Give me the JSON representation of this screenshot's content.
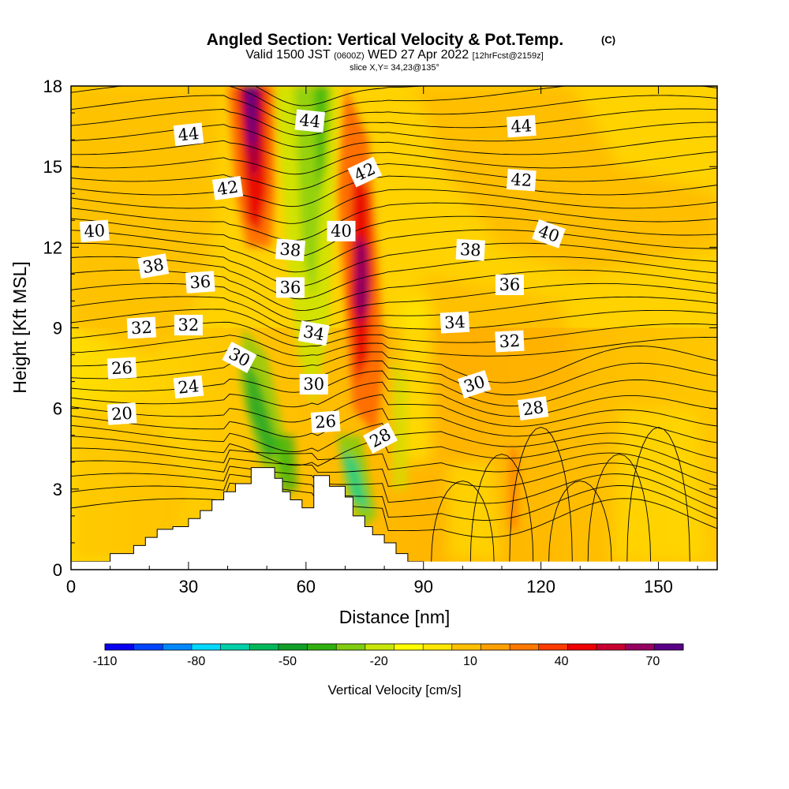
{
  "title": {
    "main": "Angled Section: Vertical Velocity & Pot.Temp.",
    "copyright": "(C)",
    "valid_prefix": "Valid 1500 JST",
    "valid_utc": "(0600Z)",
    "valid_date": "WED 27 Apr 2022",
    "forecast": "[12hrFcst@2159z]",
    "slice": "slice X,Y= 34,23@135°"
  },
  "chart_data": {
    "type": "heatmap",
    "xlabel": "Distance [nm]",
    "ylabel": "Height [Kft MSL]",
    "xlim": [
      0,
      165
    ],
    "ylim": [
      0,
      18
    ],
    "xticks": [
      0,
      30,
      60,
      90,
      120,
      150
    ],
    "yticks": [
      0,
      3,
      6,
      9,
      12,
      15,
      18
    ],
    "colorbar": {
      "title": "Vertical Velocity [cm/s]",
      "tick_labels": [
        "-110",
        "-80",
        "-50",
        "-20",
        "10",
        "40",
        "70"
      ],
      "tick_values": [
        -110,
        -80,
        -50,
        -20,
        10,
        40,
        70
      ],
      "bins": [
        -110,
        -100,
        -90,
        -80,
        -70,
        -60,
        -50,
        -40,
        -30,
        -20,
        -10,
        0,
        10,
        20,
        30,
        40,
        50,
        60,
        70,
        80
      ],
      "colors": [
        "#0a00f0",
        "#0044ff",
        "#0088ff",
        "#00d8ff",
        "#00d0a8",
        "#00b85a",
        "#10a028",
        "#30b010",
        "#80cc10",
        "#c8e608",
        "#ffff00",
        "#ffe600",
        "#ffc000",
        "#ffa000",
        "#ff7800",
        "#ff3c00",
        "#f00000",
        "#c80030",
        "#960060",
        "#5a0088"
      ]
    },
    "terrain": {
      "x": [
        0,
        10,
        10,
        16,
        16,
        19,
        19,
        22,
        22,
        26,
        26,
        30,
        30,
        33,
        33,
        36,
        36,
        39,
        39,
        42,
        42,
        46,
        46,
        52,
        52,
        54,
        54,
        56,
        56,
        59,
        59,
        62,
        62,
        66,
        66,
        70,
        70,
        72,
        72,
        75,
        75,
        77,
        77,
        80,
        80,
        83,
        83,
        86,
        86,
        90,
        90
      ],
      "y": [
        0.3,
        0.3,
        0.6,
        0.6,
        0.9,
        0.9,
        1.2,
        1.2,
        1.5,
        1.5,
        1.6,
        1.6,
        1.9,
        1.9,
        2.2,
        2.2,
        2.6,
        2.6,
        2.9,
        2.9,
        3.2,
        3.2,
        3.8,
        3.8,
        3.4,
        3.4,
        2.9,
        2.9,
        2.6,
        2.6,
        2.3,
        2.3,
        3.5,
        3.5,
        3.1,
        3.1,
        2.7,
        2.7,
        2.0,
        2.0,
        1.6,
        1.6,
        1.3,
        1.3,
        1.0,
        1.0,
        0.6,
        0.6,
        0.3,
        0.3,
        0.3
      ]
    },
    "contour_labels": [
      {
        "text": "44",
        "x": 30,
        "y": 16.2,
        "angle": -6
      },
      {
        "text": "42",
        "x": 40,
        "y": 14.2,
        "angle": -8
      },
      {
        "text": "40",
        "x": 6,
        "y": 12.6,
        "angle": -4
      },
      {
        "text": "38",
        "x": 21,
        "y": 11.3,
        "angle": -10
      },
      {
        "text": "36",
        "x": 33,
        "y": 10.7,
        "angle": -4
      },
      {
        "text": "32",
        "x": 18,
        "y": 9.0,
        "angle": -3
      },
      {
        "text": "32",
        "x": 30,
        "y": 9.1,
        "angle": 0
      },
      {
        "text": "30",
        "x": 43,
        "y": 7.9,
        "angle": 28
      },
      {
        "text": "26",
        "x": 13,
        "y": 7.5,
        "angle": -3
      },
      {
        "text": "24",
        "x": 30,
        "y": 6.8,
        "angle": -6
      },
      {
        "text": "20",
        "x": 13,
        "y": 5.8,
        "angle": -4
      },
      {
        "text": "44",
        "x": 61,
        "y": 16.7,
        "angle": 6
      },
      {
        "text": "38",
        "x": 56,
        "y": 11.9,
        "angle": 5
      },
      {
        "text": "36",
        "x": 56,
        "y": 10.5,
        "angle": 0
      },
      {
        "text": "34",
        "x": 62,
        "y": 8.8,
        "angle": 10
      },
      {
        "text": "30",
        "x": 62,
        "y": 6.9,
        "angle": 0
      },
      {
        "text": "26",
        "x": 65,
        "y": 5.5,
        "angle": -4
      },
      {
        "text": "42",
        "x": 75,
        "y": 14.8,
        "angle": -25
      },
      {
        "text": "40",
        "x": 69,
        "y": 12.6,
        "angle": 0
      },
      {
        "text": "28",
        "x": 79,
        "y": 4.9,
        "angle": -28
      },
      {
        "text": "44",
        "x": 115,
        "y": 16.5,
        "angle": -4
      },
      {
        "text": "42",
        "x": 115,
        "y": 14.5,
        "angle": 4
      },
      {
        "text": "40",
        "x": 122,
        "y": 12.5,
        "angle": 20
      },
      {
        "text": "38",
        "x": 102,
        "y": 11.9,
        "angle": 3
      },
      {
        "text": "36",
        "x": 112,
        "y": 10.6,
        "angle": 0
      },
      {
        "text": "34",
        "x": 98,
        "y": 9.2,
        "angle": -3
      },
      {
        "text": "32",
        "x": 112,
        "y": 8.5,
        "angle": -3
      },
      {
        "text": "30",
        "x": 103,
        "y": 6.9,
        "angle": -18
      },
      {
        "text": "28",
        "x": 118,
        "y": 6.0,
        "angle": -8
      }
    ]
  }
}
